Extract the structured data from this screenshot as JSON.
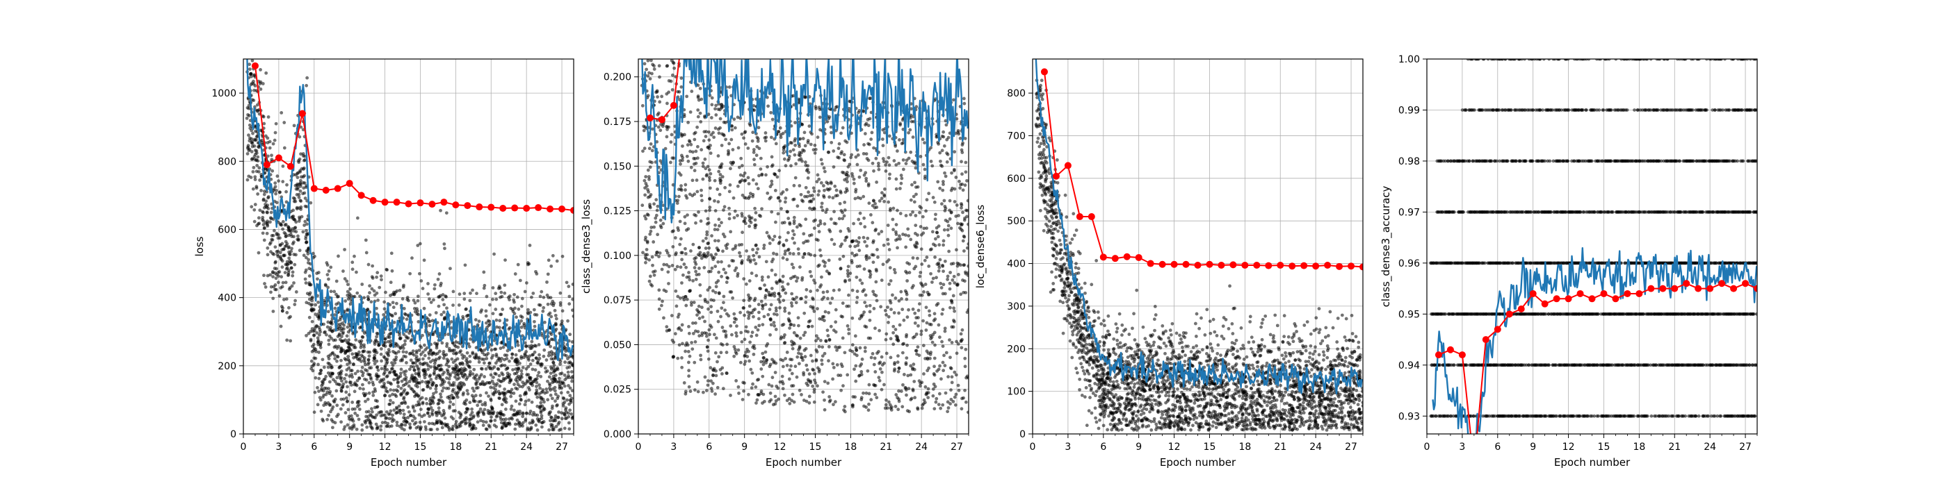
{
  "chart_data": [
    {
      "type": "line",
      "xlabel": "Epoch number",
      "ylabel": "loss",
      "xlim": [
        0,
        28
      ],
      "ylim": [
        0,
        1100
      ],
      "xticks": [
        0,
        3,
        6,
        9,
        12,
        15,
        18,
        21,
        24,
        27
      ],
      "yticks": [
        0,
        200,
        400,
        600,
        800,
        1000
      ],
      "ytick_labels": [
        "0",
        "200",
        "400",
        "600",
        "800",
        "1000"
      ],
      "grid": true,
      "colors": {
        "scatter": "#000000",
        "batch": "#1f77b4",
        "epoch": "#ff0000"
      },
      "batch_trend": {
        "x": [
          0.2,
          1,
          2,
          3,
          4,
          5,
          6,
          9,
          12,
          18,
          28
        ],
        "y": [
          1100,
          900,
          720,
          620,
          700,
          1050,
          400,
          340,
          320,
          300,
          290
        ],
        "noise": 45
      },
      "scatter_trend": {
        "x": [
          0.2,
          1,
          2,
          3,
          4,
          5,
          6,
          9,
          12,
          18,
          28
        ],
        "y": [
          1000,
          900,
          720,
          550,
          520,
          800,
          250,
          210,
          200,
          190,
          180
        ],
        "spread": 130
      },
      "epoch_mean": {
        "x": [
          1,
          2,
          3,
          4,
          5,
          6,
          7,
          8,
          9,
          10,
          11,
          12,
          13,
          14,
          15,
          16,
          17,
          18,
          19,
          20,
          21,
          22,
          23,
          24,
          25,
          26,
          27,
          28
        ],
        "y": [
          1080,
          790,
          810,
          785,
          940,
          720,
          715,
          720,
          735,
          700,
          685,
          680,
          680,
          675,
          678,
          674,
          680,
          672,
          670,
          666,
          665,
          662,
          663,
          662,
          664,
          660,
          660,
          656
        ]
      }
    },
    {
      "type": "line",
      "xlabel": "Epoch number",
      "ylabel": "class_dense3_loss",
      "xlim": [
        0,
        28
      ],
      "ylim": [
        0,
        0.21
      ],
      "xticks": [
        0,
        3,
        6,
        9,
        12,
        15,
        18,
        21,
        24,
        27
      ],
      "yticks": [
        0,
        0.025,
        0.05,
        0.075,
        0.1,
        0.125,
        0.15,
        0.175,
        0.2
      ],
      "ytick_labels": [
        "0.000",
        "0.025",
        "0.050",
        "0.075",
        "0.100",
        "0.125",
        "0.150",
        "0.175",
        "0.200"
      ],
      "grid": true,
      "colors": {
        "scatter": "#000000",
        "batch": "#1f77b4",
        "epoch": "#ff0000"
      },
      "batch_trend": {
        "x": [
          0.3,
          1,
          2,
          3,
          4,
          6,
          10,
          18,
          28
        ],
        "y": [
          0.2,
          0.17,
          0.15,
          0.14,
          0.21,
          0.2,
          0.19,
          0.185,
          0.18
        ],
        "noise": 0.02
      },
      "scatter_trend": {
        "x": [
          0.3,
          1,
          2,
          3,
          4,
          6,
          10,
          18,
          28
        ],
        "y": [
          0.18,
          0.17,
          0.15,
          0.13,
          0.11,
          0.11,
          0.105,
          0.1,
          0.1
        ],
        "spread": 0.08
      },
      "epoch_mean": {
        "x": [
          1,
          2,
          3,
          4
        ],
        "y": [
          0.177,
          0.176,
          0.184,
          0.24
        ]
      }
    },
    {
      "type": "line",
      "xlabel": "Epoch number",
      "ylabel": "loc_dense6_loss",
      "xlim": [
        0,
        28
      ],
      "ylim": [
        0,
        880
      ],
      "xticks": [
        0,
        3,
        6,
        9,
        12,
        15,
        18,
        21,
        24,
        27
      ],
      "yticks": [
        0,
        100,
        200,
        300,
        400,
        500,
        600,
        700,
        800
      ],
      "ytick_labels": [
        "0",
        "100",
        "200",
        "300",
        "400",
        "500",
        "600",
        "700",
        "800"
      ],
      "grid": true,
      "colors": {
        "scatter": "#000000",
        "batch": "#1f77b4",
        "epoch": "#ff0000"
      },
      "batch_trend": {
        "x": [
          0.2,
          1,
          2,
          3,
          4,
          5,
          6,
          9,
          14,
          20,
          28
        ],
        "y": [
          880,
          700,
          560,
          420,
          320,
          230,
          170,
          150,
          140,
          135,
          130
        ],
        "noise": 22
      },
      "scatter_trend": {
        "x": [
          0.2,
          1,
          2,
          3,
          4,
          5,
          6,
          9,
          14,
          20,
          28
        ],
        "y": [
          780,
          620,
          480,
          360,
          260,
          180,
          120,
          105,
          100,
          95,
          95
        ],
        "spread": 70
      },
      "epoch_mean": {
        "x": [
          1,
          2,
          3,
          4,
          5,
          6,
          7,
          8,
          9,
          10,
          11,
          12,
          13,
          14,
          15,
          16,
          17,
          18,
          19,
          20,
          21,
          22,
          23,
          24,
          25,
          26,
          27,
          28
        ],
        "y": [
          850,
          605,
          630,
          510,
          510,
          415,
          412,
          416,
          414,
          400,
          398,
          398,
          398,
          396,
          398,
          396,
          397,
          396,
          396,
          395,
          396,
          394,
          395,
          394,
          396,
          393,
          394,
          392
        ]
      }
    },
    {
      "type": "line",
      "xlabel": "Epoch number",
      "ylabel": "class_dense3_accuracy",
      "xlim": [
        0,
        28
      ],
      "ylim": [
        0.9265,
        1.0
      ],
      "xticks": [
        0,
        3,
        6,
        9,
        12,
        15,
        18,
        21,
        24,
        27
      ],
      "yticks": [
        0.93,
        0.94,
        0.95,
        0.96,
        0.97,
        0.98,
        0.99,
        1.0
      ],
      "ytick_labels": [
        "0.93",
        "0.94",
        "0.95",
        "0.96",
        "0.97",
        "0.98",
        "0.99",
        "1.00"
      ],
      "grid": true,
      "colors": {
        "scatter": "#000000",
        "batch": "#1f77b4",
        "epoch": "#ff0000"
      },
      "batch_trend": {
        "x": [
          0.5,
          1,
          2,
          3,
          4,
          5,
          6,
          8,
          10,
          14,
          20,
          28
        ],
        "y": [
          0.93,
          0.945,
          0.935,
          0.93,
          0.92,
          0.94,
          0.95,
          0.955,
          0.957,
          0.958,
          0.958,
          0.958
        ],
        "noise": 0.003
      },
      "accuracy_levels": [
        0.93,
        0.94,
        0.95,
        0.96,
        0.97,
        0.98,
        0.99,
        1.0
      ],
      "epoch_mean": {
        "x": [
          1,
          2,
          3,
          4,
          5,
          6,
          7,
          8,
          9,
          10,
          11,
          12,
          13,
          14,
          15,
          16,
          17,
          18,
          19,
          20,
          21,
          22,
          23,
          24,
          25,
          26,
          27,
          28
        ],
        "y": [
          0.942,
          0.943,
          0.942,
          0.92,
          0.945,
          0.947,
          0.95,
          0.951,
          0.954,
          0.952,
          0.953,
          0.953,
          0.954,
          0.953,
          0.954,
          0.953,
          0.954,
          0.954,
          0.955,
          0.955,
          0.955,
          0.956,
          0.955,
          0.955,
          0.956,
          0.955,
          0.956,
          0.955
        ]
      }
    }
  ]
}
